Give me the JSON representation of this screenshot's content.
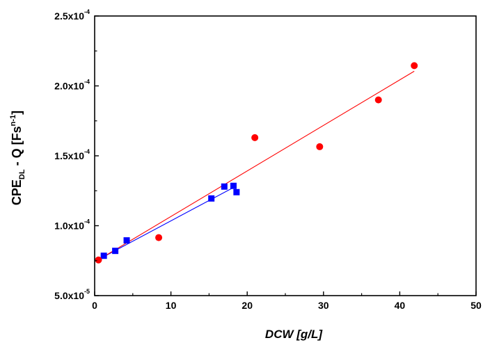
{
  "chart_data": {
    "type": "scatter",
    "title": "",
    "xlabel": "DCW [g/L]",
    "ylabel": {
      "main": "CPE",
      "sub": "DL",
      "rest": " - Q [Fs",
      "sup": "n-1",
      "end": "]"
    },
    "xlim": [
      0,
      50
    ],
    "ylim": [
      5e-05,
      0.00025
    ],
    "x_ticks": [
      0,
      10,
      20,
      30,
      40,
      50
    ],
    "x_tick_labels": [
      "0",
      "10",
      "20",
      "30",
      "40",
      "50"
    ],
    "y_ticks": [
      5e-05,
      0.0001,
      0.00015,
      0.0002,
      0.00025
    ],
    "y_tick_labels": [
      {
        "mant": "5.0x10",
        "exp": "-5"
      },
      {
        "mant": "1.0x10",
        "exp": "-4"
      },
      {
        "mant": "1.5x10",
        "exp": "-4"
      },
      {
        "mant": "2.0x10",
        "exp": "-4"
      },
      {
        "mant": "2.5x10",
        "exp": "-4"
      }
    ],
    "grid": false,
    "series": [
      {
        "marker": "square",
        "color": "#0000ff",
        "x": [
          1.2,
          2.7,
          4.2,
          15.3,
          17.0,
          18.2,
          18.6
        ],
        "y": [
          7.85e-05,
          8.2e-05,
          8.95e-05,
          0.0001195,
          0.000128,
          0.0001285,
          0.000124
        ],
        "fit": {
          "x": [
            0.9,
            18.6
          ],
          "y": [
            7.7e-05,
            0.0001285
          ]
        }
      },
      {
        "marker": "circle",
        "color": "#ff0000",
        "x": [
          0.5,
          8.4,
          21.0,
          29.5,
          37.2,
          41.9
        ],
        "y": [
          7.55e-05,
          9.15e-05,
          0.000163,
          0.0001565,
          0.00019,
          0.0002145
        ],
        "fit": {
          "x": [
            0.3,
            41.9
          ],
          "y": [
            7.5e-05,
            0.0002105
          ]
        }
      }
    ]
  }
}
